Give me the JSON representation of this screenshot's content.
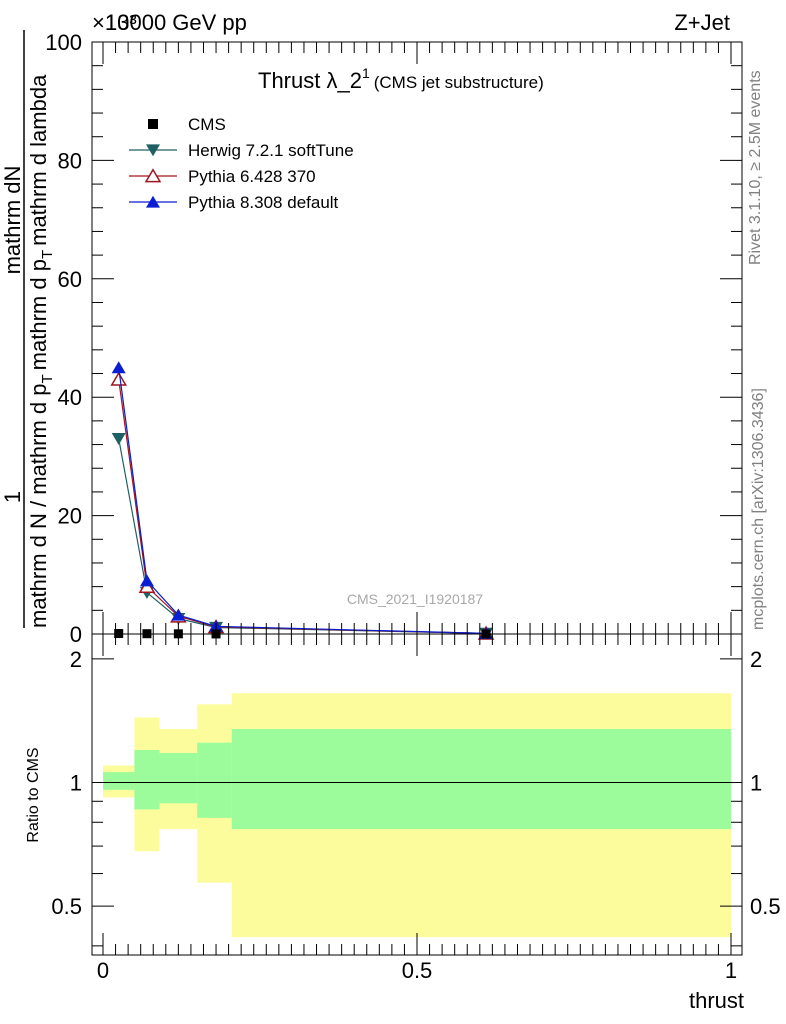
{
  "header": {
    "energy_label": "13000 GeV pp",
    "process_label": "Z+Jet",
    "exponent_label": "×10³"
  },
  "side_labels": {
    "rivet": "Rivet 3.1.10, ≥ 2.5M events",
    "mcplots": "mcplots.cern.ch [arXiv:1306.3436]"
  },
  "watermark": "CMS_2021_I1920187",
  "colors": {
    "herwig": "#1f6064",
    "pythia6": "#a0141e",
    "pythia8": "#0a1ed2",
    "band_inner": "#9cfc9c",
    "band_outer": "#fcfc9c",
    "data": "#000000"
  },
  "chart_data": [
    {
      "type": "line",
      "title_main": "Thrust λ_2",
      "title_sup": "1",
      "title_sub": "(CMS jet substructure)",
      "ylabel_top": "1",
      "ylabel_num": "mathrm dN",
      "ylabel_den": "mathrm d N / mathrm d p",
      "ylabel_den_sub": "T",
      "ylabel_den_2": "mathrm d p",
      "ylabel_den_2_sub": "T",
      "ylabel_den_3": "mathrm d lambda",
      "ylim": [
        0,
        100
      ],
      "yticks": [
        0,
        20,
        40,
        60,
        80,
        100
      ],
      "xlim": [
        -0.02,
        1.0
      ],
      "legend": [
        "CMS",
        "Herwig 7.2.1 softTune",
        "Pythia 6.428 370",
        "Pythia 8.308 default"
      ],
      "data_points": {
        "x": [
          0.025,
          0.07,
          0.12,
          0.18,
          0.61
        ],
        "y": [
          0.08,
          0.05,
          0.03,
          0.01,
          0.0
        ]
      },
      "series": [
        {
          "name": "Herwig 7.2.1 softTune",
          "x": [
            0.025,
            0.07,
            0.12,
            0.18,
            0.61
          ],
          "values": [
            33,
            7,
            2.6,
            1.1,
            0.1
          ]
        },
        {
          "name": "Pythia 6.428 370",
          "x": [
            0.025,
            0.07,
            0.12,
            0.18,
            0.61
          ],
          "values": [
            43,
            8,
            3.0,
            1.2,
            0.1
          ]
        },
        {
          "name": "Pythia 8.308 default",
          "x": [
            0.025,
            0.07,
            0.12,
            0.18,
            0.61
          ],
          "values": [
            45,
            9,
            3.2,
            1.3,
            0.1
          ]
        }
      ]
    },
    {
      "type": "area",
      "ylabel": "Ratio to CMS",
      "xlabel": "thrust",
      "ylim": [
        0.38,
        2.3
      ],
      "yticks": [
        0.5,
        1,
        2
      ],
      "ytick_labels": [
        "0.5",
        "1",
        "2"
      ],
      "xticks": [
        0,
        0.5,
        1
      ],
      "xtick_labels": [
        "0",
        "0.5",
        "1"
      ],
      "bins": [
        {
          "x0": 0.0,
          "x1": 0.05,
          "inner_lo": 0.96,
          "inner_hi": 1.06,
          "outer_lo": 0.92,
          "outer_hi": 1.1
        },
        {
          "x0": 0.05,
          "x1": 0.09,
          "inner_lo": 0.86,
          "inner_hi": 1.2,
          "outer_lo": 0.68,
          "outer_hi": 1.44
        },
        {
          "x0": 0.09,
          "x1": 0.15,
          "inner_lo": 0.89,
          "inner_hi": 1.18,
          "outer_lo": 0.77,
          "outer_hi": 1.35
        },
        {
          "x0": 0.15,
          "x1": 0.205,
          "inner_lo": 0.82,
          "inner_hi": 1.25,
          "outer_lo": 0.57,
          "outer_hi": 1.55
        },
        {
          "x0": 0.205,
          "x1": 1.0,
          "inner_lo": 0.77,
          "inner_hi": 1.35,
          "outer_lo": 0.42,
          "outer_hi": 1.65
        }
      ]
    }
  ]
}
